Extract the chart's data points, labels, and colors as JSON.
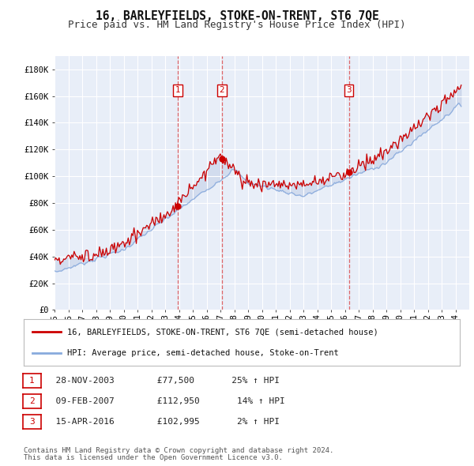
{
  "title": "16, BARLEYFIELDS, STOKE-ON-TRENT, ST6 7QE",
  "subtitle": "Price paid vs. HM Land Registry's House Price Index (HPI)",
  "ylabel_ticks": [
    "£0",
    "£20K",
    "£40K",
    "£60K",
    "£80K",
    "£100K",
    "£120K",
    "£140K",
    "£160K",
    "£180K"
  ],
  "ytick_values": [
    0,
    20000,
    40000,
    60000,
    80000,
    100000,
    120000,
    140000,
    160000,
    180000
  ],
  "ylim": [
    0,
    190000
  ],
  "xlim_start": 1995.0,
  "xlim_end": 2025.0,
  "background_color": "#ffffff",
  "plot_bg_color": "#e8eef8",
  "grid_color": "#ffffff",
  "sale_color": "#cc0000",
  "hpi_color": "#88aadd",
  "sale_label": "16, BARLEYFIELDS, STOKE-ON-TRENT, ST6 7QE (semi-detached house)",
  "hpi_label": "HPI: Average price, semi-detached house, Stoke-on-Trent",
  "transactions": [
    {
      "num": 1,
      "date": "28-NOV-2003",
      "price": 77500,
      "pct": "25%",
      "dir": "↑",
      "x": 2003.91
    },
    {
      "num": 2,
      "date": "09-FEB-2007",
      "price": 112950,
      "pct": "14%",
      "dir": "↑",
      "x": 2007.11
    },
    {
      "num": 3,
      "date": "15-APR-2016",
      "price": 102995,
      "pct": "2%",
      "dir": "↑",
      "x": 2016.29
    }
  ],
  "footer1": "Contains HM Land Registry data © Crown copyright and database right 2024.",
  "footer2": "This data is licensed under the Open Government Licence v3.0.",
  "title_fontsize": 10.5,
  "subtitle_fontsize": 9,
  "tick_fontsize": 7.5,
  "legend_fontsize": 8,
  "footer_fontsize": 6.5
}
